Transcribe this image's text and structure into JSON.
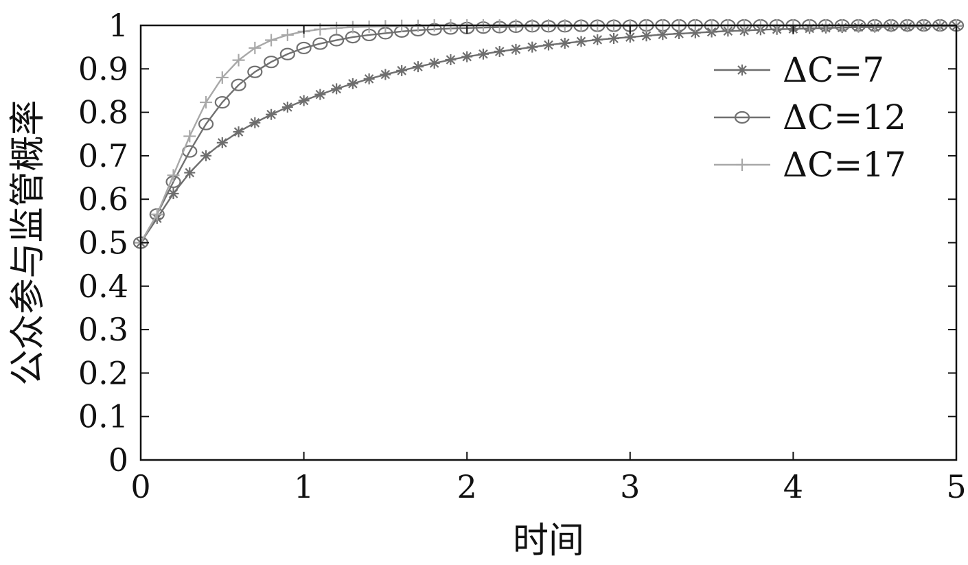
{
  "chart_data": {
    "type": "line",
    "title": "",
    "xlabel": "时间",
    "ylabel": "公众参与监管概率",
    "xlim": [
      0,
      5
    ],
    "ylim": [
      0,
      1
    ],
    "xticks": [
      "0",
      "1",
      "2",
      "3",
      "4",
      "5"
    ],
    "yticks": [
      "0",
      "0.1",
      "0.2",
      "0.3",
      "0.4",
      "0.5",
      "0.6",
      "0.7",
      "0.8",
      "0.9",
      "1"
    ],
    "grid": false,
    "legend_position": "top-right",
    "x": [
      0,
      0.1,
      0.2,
      0.3,
      0.4,
      0.5,
      0.6,
      0.7,
      0.8,
      0.9,
      1.0,
      1.1,
      1.2,
      1.3,
      1.4,
      1.5,
      1.6,
      1.7,
      1.8,
      1.9,
      2.0,
      2.1,
      2.2,
      2.3,
      2.4,
      2.5,
      2.6,
      2.7,
      2.8,
      2.9,
      3.0,
      3.1,
      3.2,
      3.3,
      3.4,
      3.5,
      3.6,
      3.7,
      3.8,
      3.9,
      4.0,
      4.1,
      4.2,
      4.3,
      4.4,
      4.5,
      4.6,
      4.7,
      4.8,
      4.9,
      5.0
    ],
    "series": [
      {
        "name": "ΔC=7",
        "color": "#6e6e6e",
        "marker": "asterisk",
        "values": [
          0.5,
          0.556,
          0.613,
          0.661,
          0.7,
          0.73,
          0.755,
          0.776,
          0.795,
          0.812,
          0.827,
          0.841,
          0.854,
          0.866,
          0.877,
          0.887,
          0.896,
          0.905,
          0.913,
          0.921,
          0.928,
          0.934,
          0.94,
          0.945,
          0.95,
          0.955,
          0.959,
          0.963,
          0.967,
          0.97,
          0.973,
          0.976,
          0.979,
          0.981,
          0.983,
          0.985,
          0.987,
          0.988,
          0.99,
          0.991,
          0.992,
          0.993,
          0.994,
          0.995,
          0.996,
          0.996,
          0.997,
          0.997,
          0.998,
          0.998,
          0.999
        ]
      },
      {
        "name": "ΔC=12",
        "color": "#707070",
        "marker": "circle",
        "values": [
          0.5,
          0.565,
          0.64,
          0.71,
          0.773,
          0.823,
          0.863,
          0.893,
          0.916,
          0.934,
          0.948,
          0.958,
          0.966,
          0.973,
          0.978,
          0.982,
          0.986,
          0.989,
          0.991,
          0.993,
          0.994,
          0.995,
          0.996,
          0.997,
          0.998,
          0.998,
          0.998,
          0.999,
          0.999,
          0.999,
          0.999,
          1.0,
          1.0,
          1.0,
          1.0,
          1.0,
          1.0,
          1.0,
          1.0,
          1.0,
          1.0,
          1.0,
          1.0,
          1.0,
          1.0,
          1.0,
          1.0,
          1.0,
          1.0,
          1.0,
          1.0
        ]
      },
      {
        "name": "ΔC=17",
        "color": "#a8a8a8",
        "marker": "plus",
        "values": [
          0.5,
          0.565,
          0.655,
          0.745,
          0.823,
          0.88,
          0.92,
          0.948,
          0.966,
          0.978,
          0.986,
          0.991,
          0.994,
          0.996,
          0.997,
          0.998,
          0.999,
          0.999,
          1.0,
          1.0,
          1.0,
          1.0,
          1.0,
          1.0,
          1.0,
          1.0,
          1.0,
          1.0,
          1.0,
          1.0,
          1.0,
          1.0,
          1.0,
          1.0,
          1.0,
          1.0,
          1.0,
          1.0,
          1.0,
          1.0,
          1.0,
          1.0,
          1.0,
          1.0,
          1.0,
          1.0,
          1.0,
          1.0,
          1.0,
          1.0,
          1.0
        ]
      }
    ]
  }
}
